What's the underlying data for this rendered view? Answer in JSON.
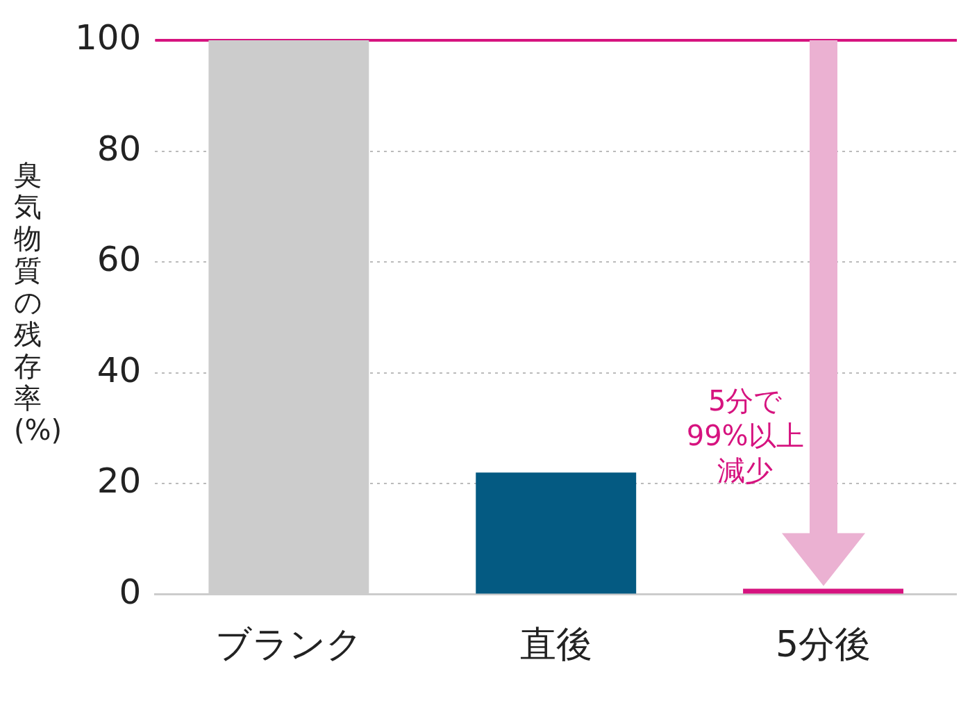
{
  "chart_data": {
    "type": "bar",
    "ylabel": "臭気物質の残存率(%)",
    "categories": [
      "ブランク",
      "直後",
      "5分後"
    ],
    "values": [
      100,
      22,
      1
    ],
    "colors": [
      "#cccccc",
      "#045a82",
      "#d6137f"
    ],
    "ylim": [
      0,
      100
    ],
    "yticks": [
      0,
      20,
      40,
      60,
      80,
      100
    ],
    "grid": "y",
    "legend": false,
    "ref_lines": [
      {
        "axis": "y",
        "value": 100,
        "color": "#d6137f"
      }
    ],
    "annotations": [
      "5分で",
      "99%以上",
      "減少"
    ]
  }
}
